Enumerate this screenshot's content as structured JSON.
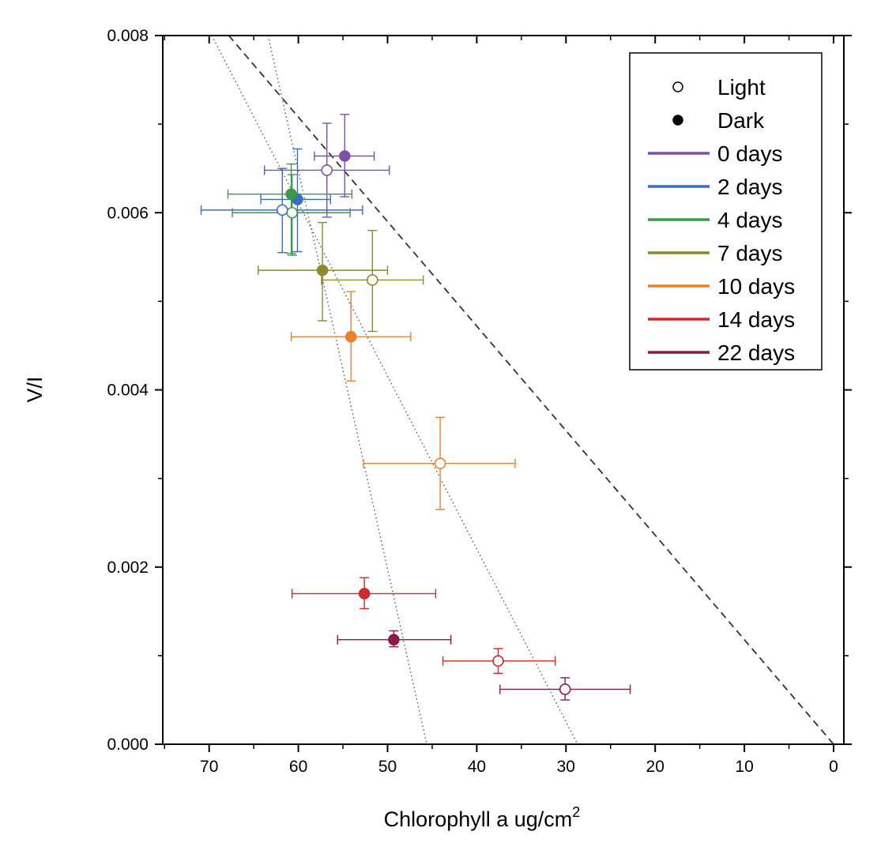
{
  "chart_data": {
    "type": "scatter",
    "title": "",
    "xlabel": "Chlorophyll a ug/cm",
    "xlabel_superscript": "2",
    "ylabel": "V/I",
    "xlim": [
      75,
      0
    ],
    "ylim": [
      0,
      0.008
    ],
    "x_ticks": [
      "70",
      "60",
      "50",
      "40",
      "30",
      "20",
      "10",
      "0"
    ],
    "y_ticks": [
      "0.000",
      "0.002",
      "0.004",
      "0.006",
      "0.008"
    ],
    "x_tick_values": [
      70,
      60,
      50,
      40,
      30,
      20,
      10,
      0
    ],
    "y_tick_values": [
      0,
      0.002,
      0.004,
      0.006,
      0.008
    ],
    "grid": false,
    "legend_position": "top-right",
    "legend": {
      "markers": [
        {
          "label": "Light",
          "fill": "open"
        },
        {
          "label": "Dark",
          "fill": "filled"
        }
      ],
      "series": [
        {
          "label": "0 days",
          "color": "#7b52ab"
        },
        {
          "label": "2 days",
          "color": "#3a6cc0"
        },
        {
          "label": "4 days",
          "color": "#3a9a4a"
        },
        {
          "label": "7 days",
          "color": "#8a8a2e"
        },
        {
          "label": "10 days",
          "color": "#e8822a"
        },
        {
          "label": "14 days",
          "color": "#d0282c"
        },
        {
          "label": "22 days",
          "color": "#8e1a4a"
        }
      ]
    },
    "series": [
      {
        "name": "0 days",
        "color": "#7b52ab",
        "points": [
          {
            "condition": "Dark",
            "x": 54.8,
            "y": 0.00664,
            "xerr_low": 58.2,
            "xerr_high": 51.5,
            "yerr_low": 0.00618,
            "yerr_high": 0.00711
          },
          {
            "condition": "Light",
            "x": 56.8,
            "y": 0.00648,
            "xerr_low": 63.8,
            "xerr_high": 49.8,
            "yerr_low": 0.00595,
            "yerr_high": 0.00701
          }
        ]
      },
      {
        "name": "2 days",
        "color": "#3a6cc0",
        "points": [
          {
            "condition": "Dark",
            "x": 60.1,
            "y": 0.00615,
            "xerr_low": 64.2,
            "xerr_high": 56.4,
            "yerr_low": 0.00556,
            "yerr_high": 0.00672
          },
          {
            "condition": "Light",
            "x": 61.8,
            "y": 0.00603,
            "xerr_low": 70.9,
            "xerr_high": 52.8,
            "yerr_low": 0.00555,
            "yerr_high": 0.0065
          }
        ]
      },
      {
        "name": "4 days",
        "color": "#3a9a4a",
        "points": [
          {
            "condition": "Dark",
            "x": 60.8,
            "y": 0.00621,
            "xerr_low": 67.9,
            "xerr_high": 54.0,
            "yerr_low": 0.00554,
            "yerr_high": 0.00655
          },
          {
            "condition": "Light",
            "x": 60.7,
            "y": 0.006,
            "xerr_low": 67.4,
            "xerr_high": 54.2,
            "yerr_low": 0.00552,
            "yerr_high": 0.00643
          }
        ]
      },
      {
        "name": "7 days",
        "color": "#8a8a2e",
        "points": [
          {
            "condition": "Dark",
            "x": 57.3,
            "y": 0.00535,
            "xerr_low": 64.5,
            "xerr_high": 50.0,
            "yerr_low": 0.00478,
            "yerr_high": 0.00589
          },
          {
            "condition": "Light",
            "x": 51.7,
            "y": 0.00524,
            "xerr_low": 57.4,
            "xerr_high": 46.0,
            "yerr_low": 0.00466,
            "yerr_high": 0.0058
          }
        ]
      },
      {
        "name": "10 days",
        "color": "#e8822a",
        "points": [
          {
            "condition": "Dark",
            "x": 54.1,
            "y": 0.0046,
            "xerr_low": 60.8,
            "xerr_high": 47.4,
            "yerr_low": 0.0041,
            "yerr_high": 0.00511
          },
          {
            "condition": "Light",
            "x": 44.1,
            "y": 0.00317,
            "xerr_low": 52.7,
            "xerr_high": 35.7,
            "yerr_low": 0.00265,
            "yerr_high": 0.00369
          }
        ]
      },
      {
        "name": "14 days",
        "color": "#d0282c",
        "points": [
          {
            "condition": "Dark",
            "x": 52.6,
            "y": 0.0017,
            "xerr_low": 60.7,
            "xerr_high": 44.6,
            "yerr_low": 0.00153,
            "yerr_high": 0.00188
          },
          {
            "condition": "Light",
            "x": 37.6,
            "y": 0.00094,
            "xerr_low": 43.8,
            "xerr_high": 31.2,
            "yerr_low": 0.0008,
            "yerr_high": 0.00108
          }
        ]
      },
      {
        "name": "22 days",
        "color": "#8e1a4a",
        "points": [
          {
            "condition": "Dark",
            "x": 49.3,
            "y": 0.00118,
            "xerr_low": 55.6,
            "xerr_high": 42.9,
            "yerr_low": 0.0011,
            "yerr_high": 0.00128
          },
          {
            "condition": "Light",
            "x": 30.1,
            "y": 0.00062,
            "xerr_low": 37.4,
            "xerr_high": 22.8,
            "yerr_low": 0.0005,
            "yerr_high": 0.00075
          }
        ]
      }
    ],
    "reference_lines": [
      {
        "name": "dashed-line",
        "style": "dashed",
        "from": [
          67.8,
          0.008
        ],
        "to": [
          0.0,
          0.0
        ]
      },
      {
        "name": "dotted-line-1",
        "style": "dotted",
        "from": [
          69.7,
          0.008
        ],
        "to": [
          28.7,
          0.0
        ]
      },
      {
        "name": "dotted-line-2",
        "style": "dotted",
        "from": [
          63.4,
          0.008
        ],
        "to": [
          45.6,
          0.0
        ]
      }
    ]
  }
}
